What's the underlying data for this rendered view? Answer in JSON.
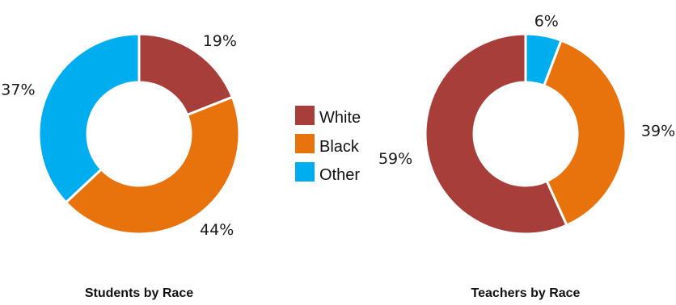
{
  "legend": {
    "items": [
      {
        "label": "White",
        "color": "#a83e3a"
      },
      {
        "label": "Black",
        "color": "#e8720c"
      },
      {
        "label": "Other",
        "color": "#00aeef"
      }
    ]
  },
  "chart_data": [
    {
      "type": "pie",
      "title": "Students by Race",
      "categories": [
        "White",
        "Black",
        "Other"
      ],
      "values": [
        19,
        44,
        37
      ],
      "labels": [
        "19%",
        "44%",
        "37%"
      ],
      "colors": [
        "#a83e3a",
        "#e8720c",
        "#00aeef"
      ],
      "donut": true,
      "legend_position": "center"
    },
    {
      "type": "pie",
      "title": "Teachers by Race",
      "categories": [
        "White",
        "Black",
        "Other"
      ],
      "values": [
        59,
        39,
        6
      ],
      "labels": [
        "59%",
        "39%",
        "6%"
      ],
      "colors": [
        "#a83e3a",
        "#e8720c",
        "#00aeef"
      ],
      "donut": true,
      "legend_position": "center"
    }
  ]
}
